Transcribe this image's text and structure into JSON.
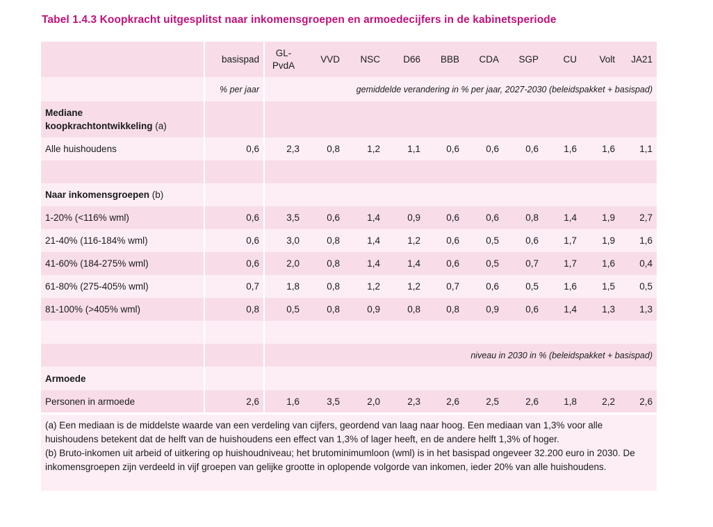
{
  "title": "Tabel 1.4.3 Koopkracht uitgesplitst naar inkomensgroepen en armoedecijfers in de kabinetsperiode",
  "columns": [
    "basispad",
    "GL-\nPvdA",
    "VVD",
    "NSC",
    "D66",
    "BBB",
    "CDA",
    "SGP",
    "CU",
    "Volt",
    "JA21"
  ],
  "units_row": {
    "basispad": "% per jaar",
    "parties": "gemiddelde verandering in % per jaar, 2027-2030 (beleidspakket + basispad)"
  },
  "section_median": {
    "heading_bold": "Mediane\nkoopkrachtontwikkeling",
    "heading_suffix": " (a)"
  },
  "row_all": {
    "label": "Alle huishoudens",
    "values": [
      "0,6",
      "2,3",
      "0,8",
      "1,2",
      "1,1",
      "0,6",
      "0,6",
      "0,6",
      "1,6",
      "1,6",
      "1,1"
    ]
  },
  "section_income": {
    "heading_bold": "Naar inkomensgroepen",
    "heading_suffix": " (b)"
  },
  "income_rows": [
    {
      "label": "1-20% (<116% wml)",
      "values": [
        "0,6",
        "3,5",
        "0,6",
        "1,4",
        "0,9",
        "0,6",
        "0,6",
        "0,8",
        "1,4",
        "1,9",
        "2,7"
      ]
    },
    {
      "label": "21-40% (116-184% wml)",
      "values": [
        "0,6",
        "3,0",
        "0,8",
        "1,4",
        "1,2",
        "0,6",
        "0,5",
        "0,6",
        "1,7",
        "1,9",
        "1,6"
      ]
    },
    {
      "label": "41-60% (184-275% wml)",
      "values": [
        "0,6",
        "2,0",
        "0,8",
        "1,4",
        "1,4",
        "0,6",
        "0,5",
        "0,7",
        "1,7",
        "1,6",
        "0,4"
      ]
    },
    {
      "label": "61-80% (275-405% wml)",
      "values": [
        "0,7",
        "1,8",
        "0,8",
        "1,2",
        "1,2",
        "0,7",
        "0,6",
        "0,5",
        "1,6",
        "1,5",
        "0,5"
      ]
    },
    {
      "label": "81-100% (>405% wml)",
      "values": [
        "0,8",
        "0,5",
        "0,8",
        "0,9",
        "0,8",
        "0,8",
        "0,9",
        "0,6",
        "1,4",
        "1,3",
        "1,3"
      ]
    }
  ],
  "level_note": "niveau in 2030 in % (beleidspakket + basispad)",
  "section_poverty": {
    "heading": "Armoede"
  },
  "row_poverty": {
    "label": "Personen in armoede",
    "values": [
      "2,6",
      "1,6",
      "3,5",
      "2,0",
      "2,3",
      "2,6",
      "2,5",
      "2,6",
      "1,8",
      "2,2",
      "2,6"
    ]
  },
  "notes": {
    "a": "(a) Een mediaan is de middelste waarde van een verdeling van cijfers, geordend van laag naar hoog. Een mediaan van 1,3% voor alle huishoudens betekent dat de helft van de huishoudens een effect van 1,3% of lager heeft, en de andere helft 1,3% of hoger.",
    "b": "(b) Bruto-inkomen uit arbeid of uitkering op huishoudniveau; het brutominimumloon (wml) is in het basispad ongeveer 32.200 euro in 2030. De inkomensgroepen zijn verdeeld in vijf groepen van gelijke grootte in oplopende volgorde van inkomen, ieder 20% van alle huishoudens."
  }
}
